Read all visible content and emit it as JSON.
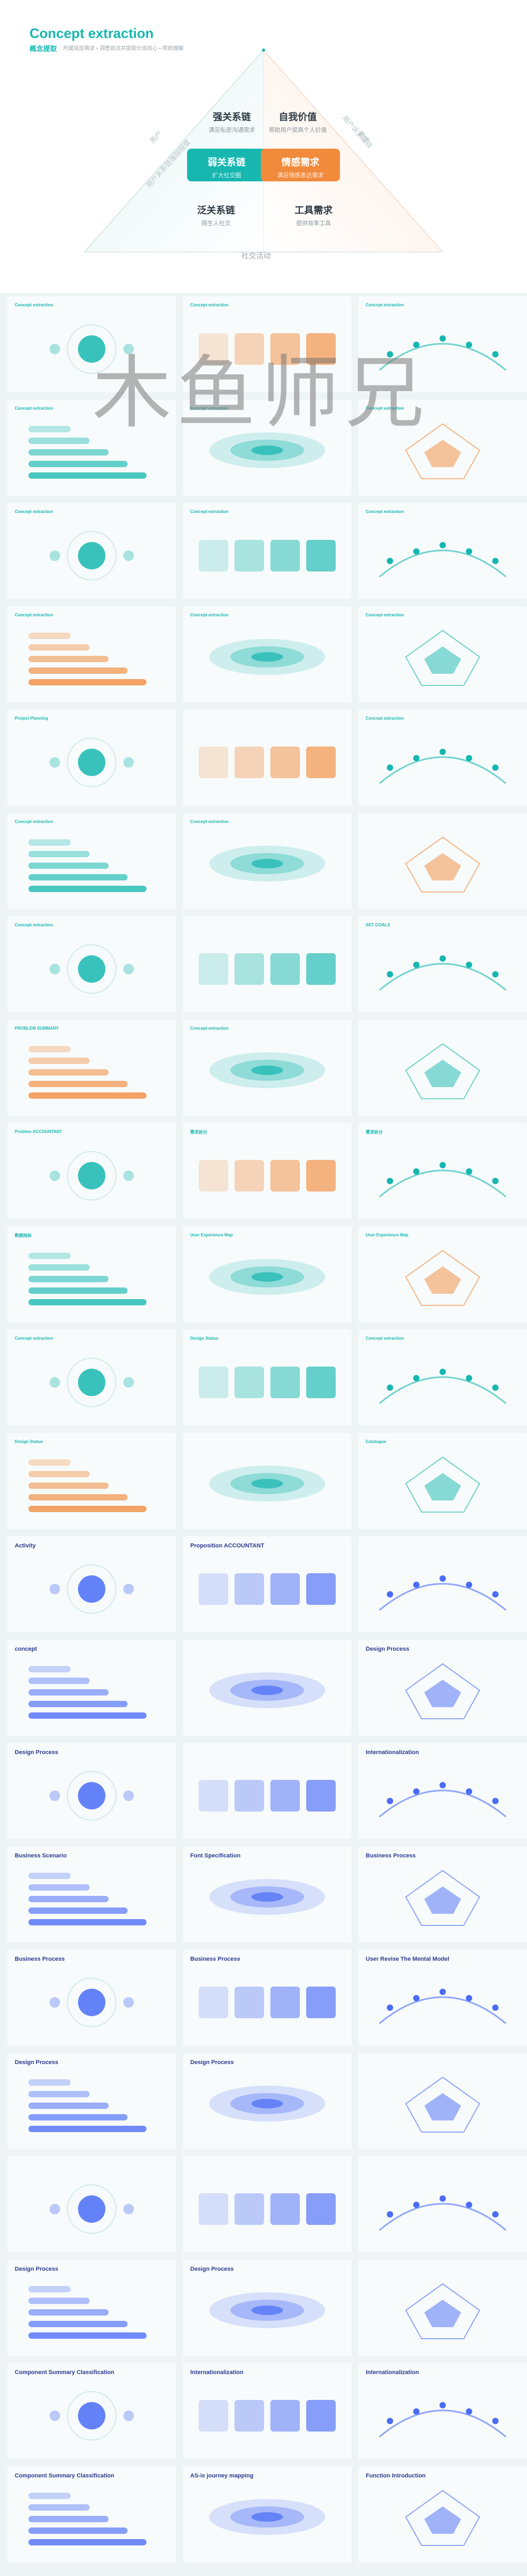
{
  "hero": {
    "title": "Concept extraction",
    "subtitle": "概念提取",
    "description": "所属底层需求 • 洞悉观点并提取价值核心 • 帮助理解",
    "top_left": {
      "title": "强关系链",
      "sub": "满足私密沟通需求"
    },
    "top_right": {
      "title": "自我价值",
      "sub": "帮助用户提高个人价值"
    },
    "mid_left": {
      "title": "弱关系链",
      "sub": "扩大社交圈"
    },
    "mid_right": {
      "title": "情感需求",
      "sub": "满足情感表达需求"
    },
    "bot_left": {
      "title": "泛关系链",
      "sub": "陌生人社交"
    },
    "bot_right": {
      "title": "工具需求",
      "sub": "提供效率工具"
    },
    "left_side_outer": "用户",
    "left_side_inner": "用户关系链强弱程度",
    "right_side_outer": "需求",
    "right_side_inner": "用户诉求层级",
    "bottom_label": "社交活动",
    "colors": {
      "teal": "#17b7b0",
      "orange": "#f28a3c"
    }
  },
  "watermark": "木鱼师兄",
  "thumbnails": [
    {
      "caption": "Concept extraction"
    },
    {
      "caption": "Concept extraction"
    },
    {
      "caption": "Concept extraction"
    },
    {
      "caption": "Concept extraction"
    },
    {
      "caption": "Concept extraction"
    },
    {
      "caption": "Concept extraction"
    },
    {
      "caption": "Concept extraction"
    },
    {
      "caption": "Concept extraction"
    },
    {
      "caption": "Concept extraction"
    },
    {
      "caption": "Concept extraction"
    },
    {
      "caption": "Concept extraction"
    },
    {
      "caption": "Concept extraction"
    },
    {
      "caption": "Project Planning"
    },
    {
      "caption": ""
    },
    {
      "caption": "Concept extraction"
    },
    {
      "caption": "Concept extraction"
    },
    {
      "caption": "Concept extraction"
    },
    {
      "caption": ""
    },
    {
      "caption": "Concept extraction"
    },
    {
      "caption": ""
    },
    {
      "caption": "SET GOALS"
    },
    {
      "caption": "PROBLEM SUMMARY"
    },
    {
      "caption": "Concept extraction"
    },
    {
      "caption": ""
    },
    {
      "caption": "Problem ACCOUNTANT"
    },
    {
      "caption": "需求拆分"
    },
    {
      "caption": "需求拆分"
    },
    {
      "caption": "数据指标"
    },
    {
      "caption": "User Experience Map"
    },
    {
      "caption": "User Experience Map"
    },
    {
      "caption": "Concept extraction"
    },
    {
      "caption": "Design Status"
    },
    {
      "caption": "Concept extraction"
    },
    {
      "caption": "Design Status"
    },
    {
      "caption": ""
    },
    {
      "caption": "Catalogue"
    },
    {
      "caption": "Activity"
    },
    {
      "caption": "Proposition ACCOUNTANT"
    },
    {
      "caption": ""
    },
    {
      "caption": "concept"
    },
    {
      "caption": ""
    },
    {
      "caption": "Design Process"
    },
    {
      "caption": "Design Process"
    },
    {
      "caption": ""
    },
    {
      "caption": "Internationalization"
    },
    {
      "caption": "Business Scenario"
    },
    {
      "caption": "Font Specification"
    },
    {
      "caption": "Business Process"
    },
    {
      "caption": "Business Process"
    },
    {
      "caption": "Business Process"
    },
    {
      "caption": "User Revise The Mental Model"
    },
    {
      "caption": "Design Process"
    },
    {
      "caption": "Design Process"
    },
    {
      "caption": ""
    },
    {
      "caption": ""
    },
    {
      "caption": ""
    },
    {
      "caption": ""
    },
    {
      "caption": "Design Process"
    },
    {
      "caption": "Design Process"
    },
    {
      "caption": ""
    },
    {
      "caption": "Component Summary Classification"
    },
    {
      "caption": "Internationalization"
    },
    {
      "caption": "Internationalization"
    },
    {
      "caption": "Component Summary Classification"
    },
    {
      "caption": "AS-is journey mapping"
    },
    {
      "caption": "Function Introduction"
    }
  ]
}
